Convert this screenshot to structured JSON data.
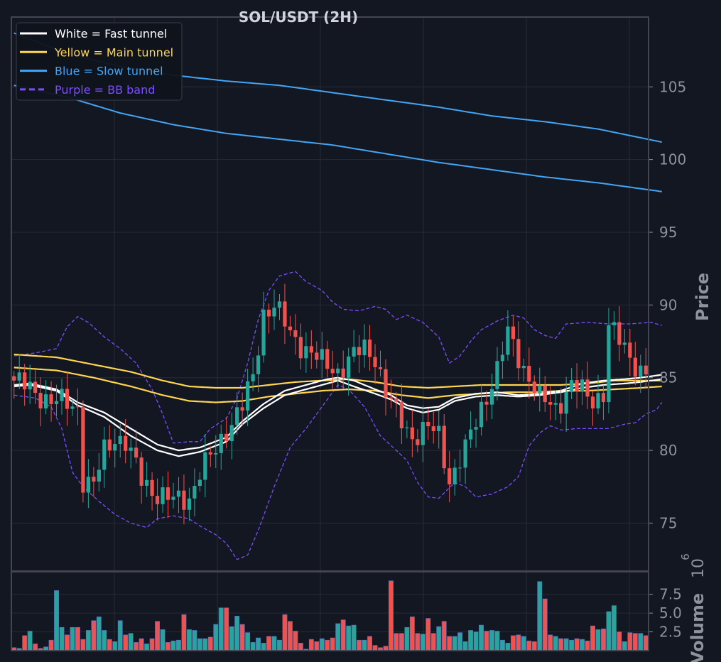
{
  "chart_data": {
    "type": "candlestick",
    "title": "SOL/USDT (2H)",
    "ylabel_price": "Price",
    "ylabel_volume": "Volume",
    "volume_multiplier": "10^6",
    "price_ylim": [
      71.7,
      109.8
    ],
    "price_ticks": [
      75,
      80,
      85,
      90,
      95,
      100,
      105
    ],
    "volume_ylim": [
      0,
      10.5
    ],
    "volume_ticks": [
      2.5,
      5.0,
      7.5
    ],
    "volume_tick_labels": [
      "2.5",
      "5.0",
      "7.5"
    ],
    "grid": true,
    "legend_position": "top-left",
    "legend": [
      {
        "label": "White = Fast tunnel",
        "color": "#ffffff",
        "dash": false
      },
      {
        "label": "Yellow = Main tunnel",
        "color": "#ffd54f",
        "dash": false
      },
      {
        "label": "Blue = Slow tunnel",
        "color": "#42a5f5",
        "dash": false
      },
      {
        "label": "Purple = BB band",
        "color": "#7c4dff",
        "dash": true
      }
    ],
    "colors": {
      "up": "#26a69a",
      "down": "#ef5350",
      "background": "#131722",
      "grid": "#262b36",
      "frame": "#434651"
    },
    "ohlc_anchor_closes": [
      [
        0,
        84.8
      ],
      [
        4,
        84.0
      ],
      [
        7,
        83.4
      ],
      [
        10,
        83.2
      ],
      [
        12,
        83.0
      ],
      [
        13,
        78.0
      ],
      [
        15,
        77.5
      ],
      [
        17,
        80.0
      ],
      [
        19,
        81.0
      ],
      [
        21,
        80.5
      ],
      [
        24,
        78.0
      ],
      [
        27,
        77.0
      ],
      [
        30,
        76.5
      ],
      [
        33,
        76.8
      ],
      [
        35,
        78.5
      ],
      [
        38,
        80.0
      ],
      [
        40,
        81.5
      ],
      [
        43,
        83.0
      ],
      [
        45,
        85.0
      ],
      [
        47,
        89.5
      ],
      [
        49,
        90.0
      ],
      [
        52,
        88.0
      ],
      [
        55,
        87.0
      ],
      [
        58,
        86.0
      ],
      [
        61,
        85.5
      ],
      [
        64,
        86.5
      ],
      [
        66,
        87.0
      ],
      [
        68,
        86.5
      ],
      [
        70,
        84.0
      ],
      [
        72,
        82.5
      ],
      [
        75,
        81.0
      ],
      [
        78,
        81.5
      ],
      [
        80,
        81.0
      ],
      [
        82,
        78.0
      ],
      [
        85,
        80.0
      ],
      [
        88,
        83.0
      ],
      [
        91,
        85.5
      ],
      [
        93,
        88.0
      ],
      [
        95,
        86.5
      ],
      [
        97,
        85.0
      ],
      [
        99,
        83.5
      ],
      [
        102,
        83.0
      ],
      [
        105,
        84.5
      ],
      [
        107,
        84.0
      ],
      [
        109,
        83.5
      ],
      [
        111,
        84.0
      ],
      [
        112,
        88.5
      ],
      [
        114,
        87.5
      ],
      [
        116,
        86.5
      ],
      [
        118,
        85.5
      ],
      [
        121,
        85.0
      ],
      [
        124,
        85.0
      ],
      [
        126,
        86.5
      ],
      [
        128,
        85.5
      ],
      [
        130,
        85.5
      ]
    ],
    "volume_values": [
      0.4,
      0.3,
      2.0,
      2.6,
      0.9,
      0.3,
      0.5,
      1.4,
      8.0,
      3.1,
      2.1,
      3.1,
      3.1,
      1.5,
      2.7,
      4.0,
      4.5,
      2.7,
      1.5,
      1.2,
      4.0,
      2.1,
      2.3,
      1.1,
      1.6,
      0.9,
      1.6,
      3.9,
      2.8,
      1.1,
      1.3,
      1.4,
      4.8,
      2.8,
      2.7,
      1.6,
      1.6,
      1.8,
      3.5,
      5.7,
      5.7,
      3.2,
      4.6,
      3.5,
      2.4,
      1.1,
      1.7,
      1.0,
      1.9,
      1.9,
      1.4,
      4.8,
      3.9,
      2.6,
      1.0,
      0.2,
      1.5,
      1.2,
      1.6,
      1.4,
      1.7,
      3.6,
      4.1,
      3.3,
      3.4,
      1.4,
      1.4,
      1.9,
      0.7,
      0.4,
      0.6,
      9.3,
      2.3,
      2.3,
      3.1,
      4.5,
      2.3,
      2.2,
      4.3,
      2.3,
      3.2,
      3.9,
      1.9,
      1.9,
      2.4,
      1.2,
      2.7,
      2.5,
      3.4,
      2.6,
      2.7,
      2.6,
      1.4,
      1.0,
      2.0,
      2.1,
      1.9,
      1.3,
      1.2,
      9.2,
      6.9,
      2.1,
      1.9,
      1.6,
      1.6,
      1.4,
      1.6,
      1.5,
      1.3,
      3.3,
      2.8,
      2.9,
      5.2,
      6.0,
      2.5,
      1.2,
      2.4,
      2.3,
      2.3,
      2.0
    ],
    "fast_tunnel": {
      "upper": [
        [
          0,
          84.5
        ],
        [
          3,
          84.6
        ],
        [
          8,
          84.2
        ],
        [
          12,
          83.3
        ],
        [
          17,
          82.6
        ],
        [
          22,
          81.5
        ],
        [
          27,
          80.4
        ],
        [
          31,
          80.0
        ],
        [
          35,
          80.2
        ],
        [
          40,
          80.9
        ],
        [
          43,
          82.0
        ],
        [
          47,
          83.2
        ],
        [
          51,
          84.1
        ],
        [
          55,
          84.5
        ],
        [
          59,
          84.9
        ],
        [
          61,
          85.0
        ],
        [
          64,
          84.8
        ],
        [
          68,
          84.2
        ],
        [
          71,
          83.8
        ],
        [
          74,
          83.1
        ],
        [
          77,
          82.9
        ],
        [
          80,
          83.0
        ],
        [
          83,
          83.6
        ],
        [
          87,
          83.9
        ],
        [
          91,
          84.0
        ],
        [
          95,
          83.8
        ],
        [
          99,
          83.9
        ],
        [
          103,
          84.1
        ],
        [
          107,
          84.6
        ],
        [
          111,
          84.8
        ],
        [
          115,
          84.9
        ],
        [
          118,
          85.0
        ],
        [
          122,
          85.2
        ]
      ],
      "lower": [
        [
          0,
          84.4
        ],
        [
          3,
          84.5
        ],
        [
          8,
          84.1
        ],
        [
          12,
          83.1
        ],
        [
          17,
          82.3
        ],
        [
          22,
          81.0
        ],
        [
          27,
          80.0
        ],
        [
          31,
          79.6
        ],
        [
          35,
          79.9
        ],
        [
          40,
          80.6
        ],
        [
          43,
          81.8
        ],
        [
          47,
          82.9
        ],
        [
          51,
          83.8
        ],
        [
          55,
          84.2
        ],
        [
          59,
          84.6
        ],
        [
          61,
          84.8
        ],
        [
          64,
          84.4
        ],
        [
          68,
          83.9
        ],
        [
          71,
          83.5
        ],
        [
          74,
          82.9
        ],
        [
          77,
          82.6
        ],
        [
          80,
          82.8
        ],
        [
          83,
          83.4
        ],
        [
          87,
          83.7
        ],
        [
          91,
          83.8
        ],
        [
          95,
          83.7
        ],
        [
          99,
          83.8
        ],
        [
          103,
          84.0
        ],
        [
          107,
          84.3
        ],
        [
          111,
          84.5
        ],
        [
          115,
          84.6
        ],
        [
          118,
          84.7
        ],
        [
          122,
          84.9
        ]
      ]
    },
    "main_tunnel": {
      "upper": [
        [
          0,
          86.6
        ],
        [
          8,
          86.4
        ],
        [
          15,
          85.9
        ],
        [
          22,
          85.4
        ],
        [
          28,
          84.8
        ],
        [
          33,
          84.4
        ],
        [
          38,
          84.3
        ],
        [
          43,
          84.3
        ],
        [
          48,
          84.5
        ],
        [
          53,
          84.7
        ],
        [
          58,
          84.8
        ],
        [
          63,
          84.9
        ],
        [
          68,
          84.7
        ],
        [
          73,
          84.4
        ],
        [
          78,
          84.3
        ],
        [
          83,
          84.4
        ],
        [
          88,
          84.5
        ],
        [
          93,
          84.5
        ],
        [
          98,
          84.5
        ],
        [
          103,
          84.5
        ],
        [
          108,
          84.6
        ],
        [
          113,
          84.8
        ],
        [
          118,
          84.8
        ],
        [
          122,
          84.8
        ]
      ],
      "lower": [
        [
          0,
          85.7
        ],
        [
          8,
          85.5
        ],
        [
          15,
          85.0
        ],
        [
          22,
          84.4
        ],
        [
          28,
          83.8
        ],
        [
          33,
          83.4
        ],
        [
          38,
          83.3
        ],
        [
          43,
          83.4
        ],
        [
          48,
          83.7
        ],
        [
          53,
          83.9
        ],
        [
          58,
          84.1
        ],
        [
          63,
          84.2
        ],
        [
          68,
          84.1
        ],
        [
          73,
          83.8
        ],
        [
          78,
          83.6
        ],
        [
          83,
          83.8
        ],
        [
          88,
          83.9
        ],
        [
          93,
          84.0
        ],
        [
          98,
          84.0
        ],
        [
          103,
          84.1
        ],
        [
          108,
          84.1
        ],
        [
          113,
          84.2
        ],
        [
          118,
          84.3
        ],
        [
          122,
          84.4
        ]
      ]
    },
    "slow_tunnel": {
      "upper": [
        [
          0,
          108.7
        ],
        [
          10,
          107.3
        ],
        [
          20,
          106.4
        ],
        [
          30,
          105.8
        ],
        [
          40,
          105.4
        ],
        [
          50,
          105.1
        ],
        [
          60,
          104.6
        ],
        [
          70,
          104.1
        ],
        [
          80,
          103.6
        ],
        [
          90,
          103.0
        ],
        [
          100,
          102.6
        ],
        [
          110,
          102.1
        ],
        [
          122,
          101.2
        ]
      ],
      "lower": [
        [
          0,
          105.1
        ],
        [
          10,
          104.3
        ],
        [
          20,
          103.2
        ],
        [
          30,
          102.4
        ],
        [
          40,
          101.8
        ],
        [
          50,
          101.4
        ],
        [
          60,
          101.0
        ],
        [
          70,
          100.4
        ],
        [
          80,
          99.8
        ],
        [
          90,
          99.3
        ],
        [
          100,
          98.8
        ],
        [
          110,
          98.4
        ],
        [
          122,
          97.8
        ]
      ]
    },
    "bb_band": {
      "upper": [
        [
          0,
          86.5
        ],
        [
          4,
          86.7
        ],
        [
          8,
          87.0
        ],
        [
          10,
          88.5
        ],
        [
          12,
          89.2
        ],
        [
          14,
          88.8
        ],
        [
          17,
          87.8
        ],
        [
          20,
          87.0
        ],
        [
          23,
          86.0
        ],
        [
          26,
          84.2
        ],
        [
          28,
          82.5
        ],
        [
          30,
          80.5
        ],
        [
          33,
          80.6
        ],
        [
          35,
          80.6
        ],
        [
          37,
          81.5
        ],
        [
          40,
          82.2
        ],
        [
          42,
          83.6
        ],
        [
          44,
          86.0
        ],
        [
          46,
          89.0
        ],
        [
          48,
          91.0
        ],
        [
          50,
          92.0
        ],
        [
          53,
          92.3
        ],
        [
          55,
          91.6
        ],
        [
          58,
          91.0
        ],
        [
          60,
          90.2
        ],
        [
          62,
          89.7
        ],
        [
          65,
          89.6
        ],
        [
          68,
          89.9
        ],
        [
          70,
          89.7
        ],
        [
          72,
          89.0
        ],
        [
          74,
          89.3
        ],
        [
          77,
          88.8
        ],
        [
          80,
          87.8
        ],
        [
          82,
          86.0
        ],
        [
          84,
          86.5
        ],
        [
          86,
          87.5
        ],
        [
          88,
          88.3
        ],
        [
          91,
          88.9
        ],
        [
          94,
          89.3
        ],
        [
          96,
          89.1
        ],
        [
          98,
          88.3
        ],
        [
          100,
          87.9
        ],
        [
          102,
          87.7
        ],
        [
          104,
          88.7
        ],
        [
          108,
          88.8
        ],
        [
          112,
          88.7
        ],
        [
          116,
          88.7
        ],
        [
          120,
          88.8
        ],
        [
          122,
          88.6
        ]
      ],
      "lower": [
        [
          0,
          83.8
        ],
        [
          4,
          83.6
        ],
        [
          7,
          83.0
        ],
        [
          9,
          81.5
        ],
        [
          11,
          78.5
        ],
        [
          13,
          77.5
        ],
        [
          16,
          76.5
        ],
        [
          19,
          75.6
        ],
        [
          22,
          75.0
        ],
        [
          25,
          74.7
        ],
        [
          27,
          75.3
        ],
        [
          30,
          75.5
        ],
        [
          33,
          75.3
        ],
        [
          35,
          74.8
        ],
        [
          38,
          74.2
        ],
        [
          40,
          73.6
        ],
        [
          42,
          72.5
        ],
        [
          44,
          72.8
        ],
        [
          46,
          74.5
        ],
        [
          49,
          77.5
        ],
        [
          52,
          80.2
        ],
        [
          55,
          81.5
        ],
        [
          58,
          83.0
        ],
        [
          61,
          84.5
        ],
        [
          63,
          84.2
        ],
        [
          66,
          83.0
        ],
        [
          69,
          81.0
        ],
        [
          72,
          80.0
        ],
        [
          74,
          79.3
        ],
        [
          76,
          77.8
        ],
        [
          78,
          76.8
        ],
        [
          80,
          76.7
        ],
        [
          83,
          77.8
        ],
        [
          85,
          77.5
        ],
        [
          87,
          76.8
        ],
        [
          90,
          77.0
        ],
        [
          93,
          77.5
        ],
        [
          95,
          78.2
        ],
        [
          97,
          80.3
        ],
        [
          99,
          81.2
        ],
        [
          101,
          81.7
        ],
        [
          103,
          81.4
        ],
        [
          106,
          81.5
        ],
        [
          109,
          81.5
        ],
        [
          112,
          81.5
        ],
        [
          115,
          81.8
        ],
        [
          117,
          81.9
        ],
        [
          119,
          82.5
        ],
        [
          121,
          82.8
        ],
        [
          122,
          83.3
        ]
      ]
    }
  }
}
